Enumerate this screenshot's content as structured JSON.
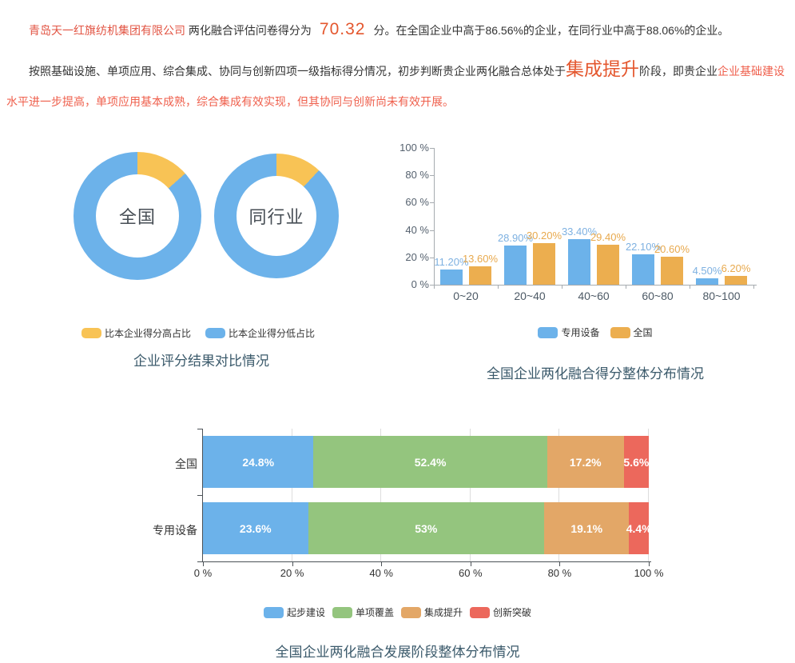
{
  "summary": {
    "company": "青岛天一红旗纺机集团有限公司",
    "score_prefix": "两化融合评估问卷得分为",
    "score": "70.32",
    "score_suffix": "分。在全国企业中高于86.56%的企业，在同行业中高于88.06%的企业。",
    "analysis_lead": "按照基础设施、单项应用、综合集成、协同与创新四项一级指标得分情况，初步判断贵企业两化融合总体处于",
    "stage": "集成提升",
    "analysis_mid": "阶段，即贵企业",
    "analysis_tail": "企业基础建设水平进一步提高，单项应用基本成熟，综合集成有效实现，但其协同与创新尚未有效开展。"
  },
  "colors": {
    "company_red": "#e25443",
    "score_orange": "#e4572e",
    "analysis_red": "#ef5f4c",
    "title_color": "#3b5a6b"
  },
  "chart_data": [
    {
      "type": "pie",
      "title": "企业评分结果对比情况",
      "donuts": [
        {
          "label": "全国",
          "higher_pct": 13.44,
          "lower_pct": 86.56
        },
        {
          "label": "同行业",
          "higher_pct": 11.94,
          "lower_pct": 88.06
        }
      ],
      "legend": [
        {
          "label": "比本企业得分高占比",
          "color": "#f8c355"
        },
        {
          "label": "比本企业得分低占比",
          "color": "#6cb2ea"
        }
      ]
    },
    {
      "type": "bar",
      "title": "全国企业两化融合得分整体分布情况",
      "categories": [
        "0~20",
        "20~40",
        "40~60",
        "60~80",
        "80~100"
      ],
      "series": [
        {
          "name": "专用设备",
          "color": "#6cb2ea",
          "label_color": "#7eb1e1",
          "values": [
            11.2,
            28.9,
            33.4,
            22.1,
            4.5
          ]
        },
        {
          "name": "全国",
          "color": "#ecae4f",
          "label_color": "#e8a94d",
          "values": [
            13.6,
            30.2,
            29.4,
            20.6,
            6.2
          ]
        }
      ],
      "yticks": [
        "0 %",
        "20 %",
        "40 %",
        "60 %",
        "80 %",
        "100 %"
      ],
      "ylim": [
        0,
        100
      ],
      "ylabel": "",
      "xlabel": ""
    },
    {
      "type": "bar-horizontal-stacked",
      "title": "全国企业两化融合发展阶段整体分布情况",
      "categories": [
        "全国",
        "专用设备"
      ],
      "series": [
        {
          "name": "起步建设",
          "color": "#6cb2ea",
          "values": [
            24.8,
            23.6
          ]
        },
        {
          "name": "单项覆盖",
          "color": "#94c57e",
          "values": [
            52.4,
            53
          ]
        },
        {
          "name": "集成提升",
          "color": "#e3a767",
          "values": [
            17.2,
            19.1
          ]
        },
        {
          "name": "创新突破",
          "color": "#ec685c",
          "values": [
            5.6,
            4.4
          ]
        }
      ],
      "xticks": [
        "0 %",
        "20 %",
        "40 %",
        "60 %",
        "80 %",
        "100 %"
      ],
      "xlim": [
        0,
        100
      ]
    }
  ]
}
